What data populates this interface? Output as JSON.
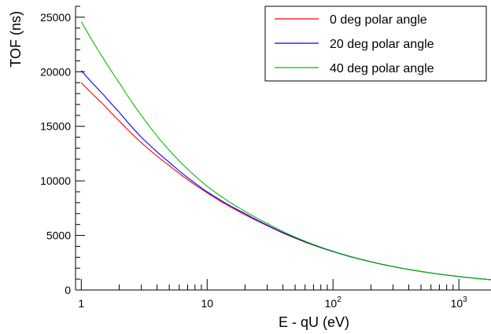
{
  "chart_data": {
    "type": "line",
    "title": "",
    "xlabel": "E - qU (eV)",
    "ylabel": "TOF (ns)",
    "xscale": "log",
    "xlim": [
      0.9,
      1800
    ],
    "ylim": [
      0,
      26000
    ],
    "grid": false,
    "legend_position": "top-right",
    "x_ticks": [
      {
        "value": 1,
        "label": "1"
      },
      {
        "value": 10,
        "label": "10"
      },
      {
        "value": 100,
        "label": "10",
        "sup": "2"
      },
      {
        "value": 1000,
        "label": "10",
        "sup": "3"
      }
    ],
    "y_ticks": [
      {
        "value": 0,
        "label": "0"
      },
      {
        "value": 5000,
        "label": "5000"
      },
      {
        "value": 10000,
        "label": "10000"
      },
      {
        "value": 15000,
        "label": "15000"
      },
      {
        "value": 20000,
        "label": "20000"
      },
      {
        "value": 25000,
        "label": "25000"
      }
    ],
    "series": [
      {
        "name": "0 deg polar angle",
        "color": "#ff0000",
        "points": [
          [
            1,
            19000
          ],
          [
            1.5,
            17000
          ],
          [
            2,
            15500
          ],
          [
            3,
            13500
          ],
          [
            5,
            11400
          ],
          [
            10,
            8900
          ],
          [
            20,
            6900
          ],
          [
            30,
            5900
          ],
          [
            50,
            4750
          ],
          [
            100,
            3520
          ],
          [
            200,
            2580
          ],
          [
            500,
            1700
          ],
          [
            1000,
            1230
          ],
          [
            1800,
            940
          ]
        ]
      },
      {
        "name": "20 deg polar angle",
        "color": "#0000ff",
        "points": [
          [
            1,
            20100
          ],
          [
            1.5,
            17900
          ],
          [
            2,
            16300
          ],
          [
            3,
            14000
          ],
          [
            5,
            11700
          ],
          [
            10,
            9000
          ],
          [
            20,
            7000
          ],
          [
            30,
            5950
          ],
          [
            50,
            4780
          ],
          [
            100,
            3530
          ],
          [
            200,
            2585
          ],
          [
            500,
            1700
          ],
          [
            1000,
            1230
          ],
          [
            1800,
            940
          ]
        ]
      },
      {
        "name": "40 deg polar angle",
        "color": "#00c000",
        "points": [
          [
            1,
            24600
          ],
          [
            1.5,
            21200
          ],
          [
            2,
            19000
          ],
          [
            3,
            16000
          ],
          [
            5,
            12800
          ],
          [
            10,
            9500
          ],
          [
            20,
            7200
          ],
          [
            30,
            6100
          ],
          [
            50,
            4850
          ],
          [
            100,
            3560
          ],
          [
            200,
            2600
          ],
          [
            500,
            1705
          ],
          [
            1000,
            1235
          ],
          [
            1800,
            940
          ]
        ]
      }
    ]
  }
}
